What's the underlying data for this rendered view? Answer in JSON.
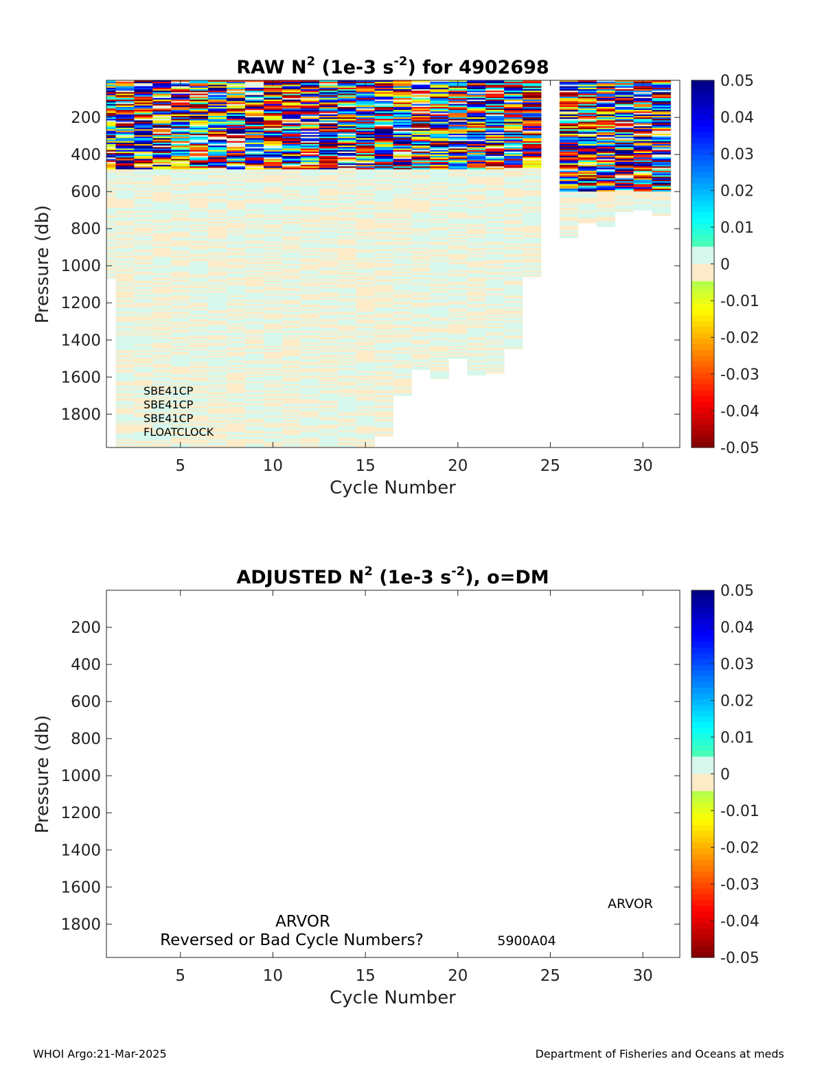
{
  "chart_data": [
    {
      "type": "heatmap",
      "title": "RAW N² (1e-3 s⁻²) for 4902698",
      "title_parts": {
        "a": "RAW N",
        "sup1": "2",
        "b": " (1e-3 s",
        "sup2": "-2",
        "c": ") for 4902698"
      },
      "xlabel": "Cycle Number",
      "ylabel": "Pressure (db)",
      "xlim": [
        1,
        32
      ],
      "ylim": [
        0,
        1980
      ],
      "y_reversed": true,
      "x_ticks": [
        5,
        10,
        15,
        20,
        25,
        30
      ],
      "y_ticks": [
        200,
        400,
        600,
        800,
        1000,
        1200,
        1400,
        1600,
        1800
      ],
      "colorbar": {
        "range": [
          -0.05,
          0.05
        ],
        "ticks": [
          0.05,
          0.04,
          0.03,
          0.02,
          0.01,
          0,
          -0.01,
          -0.02,
          -0.03,
          -0.04,
          -0.05
        ],
        "tick_labels": [
          "0.05",
          "0.04",
          "0.03",
          "0.02",
          "0.01",
          "0",
          "-0.01",
          "-0.02",
          "-0.03",
          "-0.04",
          "-0.05"
        ]
      },
      "annotations": [
        "SBE41CP",
        "SBE41CP",
        "SBE41CP",
        "FLOATCLOCK"
      ],
      "profiles": [
        {
          "cycle": 1,
          "max_pressure": 1070
        },
        {
          "cycle": 2,
          "max_pressure": 1980
        },
        {
          "cycle": 3,
          "max_pressure": 1980
        },
        {
          "cycle": 4,
          "max_pressure": 1980
        },
        {
          "cycle": 5,
          "max_pressure": 1980
        },
        {
          "cycle": 6,
          "max_pressure": 1980
        },
        {
          "cycle": 7,
          "max_pressure": 1980
        },
        {
          "cycle": 8,
          "max_pressure": 1980
        },
        {
          "cycle": 9,
          "max_pressure": 1980
        },
        {
          "cycle": 10,
          "max_pressure": 1980
        },
        {
          "cycle": 11,
          "max_pressure": 1980
        },
        {
          "cycle": 12,
          "max_pressure": 1980
        },
        {
          "cycle": 13,
          "max_pressure": 1980
        },
        {
          "cycle": 14,
          "max_pressure": 1980
        },
        {
          "cycle": 15,
          "max_pressure": 1980
        },
        {
          "cycle": 16,
          "max_pressure": 1920
        },
        {
          "cycle": 17,
          "max_pressure": 1700
        },
        {
          "cycle": 18,
          "max_pressure": 1560
        },
        {
          "cycle": 19,
          "max_pressure": 1610
        },
        {
          "cycle": 20,
          "max_pressure": 1500
        },
        {
          "cycle": 21,
          "max_pressure": 1590
        },
        {
          "cycle": 22,
          "max_pressure": 1580
        },
        {
          "cycle": 23,
          "max_pressure": 1450
        },
        {
          "cycle": 24,
          "max_pressure": 1060
        },
        {
          "cycle": 26,
          "max_pressure": 850
        },
        {
          "cycle": 27,
          "max_pressure": 770
        },
        {
          "cycle": 28,
          "max_pressure": 790
        },
        {
          "cycle": 29,
          "max_pressure": 710
        },
        {
          "cycle": 30,
          "max_pressure": 700
        },
        {
          "cycle": 31,
          "max_pressure": 730
        }
      ]
    },
    {
      "type": "heatmap",
      "title": "ADJUSTED N² (1e-3 s⁻²), o=DM",
      "title_parts": {
        "a": "ADJUSTED N",
        "sup1": "2",
        "b": " (1e-3 s",
        "sup2": "-2",
        "c": "), o=DM"
      },
      "xlabel": "Cycle Number",
      "ylabel": "Pressure (db)",
      "xlim": [
        1,
        32
      ],
      "ylim": [
        0,
        1980
      ],
      "y_reversed": true,
      "x_ticks": [
        5,
        10,
        15,
        20,
        25,
        30
      ],
      "y_ticks": [
        200,
        400,
        600,
        800,
        1000,
        1200,
        1400,
        1600,
        1800
      ],
      "colorbar": {
        "range": [
          -0.05,
          0.05
        ],
        "ticks": [
          0.05,
          0.04,
          0.03,
          0.02,
          0.01,
          0,
          -0.01,
          -0.02,
          -0.03,
          -0.04,
          -0.05
        ],
        "tick_labels": [
          "0.05",
          "0.04",
          "0.03",
          "0.02",
          "0.01",
          "0",
          "-0.01",
          "-0.02",
          "-0.03",
          "-0.04",
          "-0.05"
        ]
      },
      "annotations": {
        "arvor_left": "ARVOR",
        "reversed": "Reversed or Bad Cycle Numbers?",
        "code": "5900A04",
        "arvor_right": "ARVOR"
      },
      "profiles": []
    }
  ],
  "footer": {
    "left": "WHOI Argo:21-Mar-2025",
    "right": "Department of Fisheries and Oceans at meds"
  }
}
